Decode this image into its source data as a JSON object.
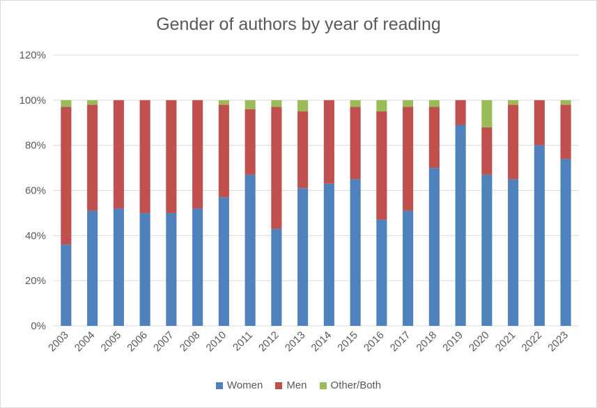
{
  "chart_data": {
    "type": "bar",
    "stacked": true,
    "title": "Gender of authors by year of reading",
    "categories": [
      "2003",
      "2004",
      "2005",
      "2006",
      "2007",
      "2008",
      "2010",
      "2011",
      "2012",
      "2013",
      "2014",
      "2015",
      "2016",
      "2017",
      "2018",
      "2019",
      "2020",
      "2021",
      "2022",
      "2023"
    ],
    "series": [
      {
        "name": "Women",
        "color": "#4f81bd",
        "values": [
          36,
          51,
          52,
          50,
          50,
          52,
          57,
          67,
          43,
          61,
          63,
          65,
          47,
          51,
          70,
          89,
          67,
          65,
          80,
          74
        ]
      },
      {
        "name": "Men",
        "color": "#c0504d",
        "values": [
          61,
          47,
          48,
          50,
          50,
          48,
          41,
          29,
          54,
          34,
          37,
          32,
          48,
          46,
          27,
          11,
          21,
          33,
          20,
          24
        ]
      },
      {
        "name": "Other/Both",
        "color": "#9bbb59",
        "values": [
          3,
          2,
          0,
          0,
          0,
          0,
          2,
          4,
          3,
          5,
          0,
          3,
          5,
          3,
          3,
          0,
          12,
          2,
          0,
          2
        ]
      }
    ],
    "ylim": [
      0,
      120
    ],
    "yticks": [
      "0%",
      "20%",
      "40%",
      "60%",
      "80%",
      "100%",
      "120%"
    ],
    "grid": true,
    "legend_position": "bottom"
  }
}
